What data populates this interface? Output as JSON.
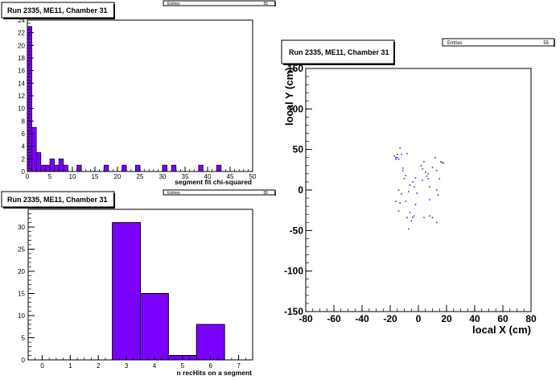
{
  "chart_data": [
    {
      "type": "bar",
      "title": "Run 2335, ME11, Chamber 31",
      "stats_label": "Entries",
      "stats_value": "55",
      "xlabel": "segment fit chi-squared",
      "ylabel": "",
      "xlim": [
        0,
        50
      ],
      "ylim": [
        0,
        24
      ],
      "bin_width": 1,
      "bin_edges_start": [
        0,
        1,
        2,
        3,
        4,
        5,
        6,
        7,
        8,
        11,
        17,
        21,
        24,
        30,
        32,
        38,
        42
      ],
      "values": [
        23,
        7,
        3,
        1,
        1,
        2,
        1,
        2,
        1,
        1,
        1,
        1,
        1,
        1,
        1,
        1,
        1
      ],
      "x_ticks": [
        "0",
        "5",
        "10",
        "15",
        "20",
        "25",
        "30",
        "35",
        "40",
        "45",
        "50"
      ],
      "y_ticks": [
        "0",
        "2",
        "4",
        "6",
        "8",
        "10",
        "12",
        "14",
        "16",
        "18",
        "20",
        "22",
        "24"
      ],
      "colors": {
        "fill": "#7b00ff",
        "frame": "#000000"
      }
    },
    {
      "type": "bar",
      "title": "Run 2335, ME11, Chamber 31",
      "stats_label": "Entries",
      "stats_value": "55",
      "xlabel": "n recHits on a segment",
      "ylabel": "",
      "xlim": [
        -0.5,
        7.5
      ],
      "ylim": [
        0,
        34
      ],
      "categories": [
        3,
        4,
        5,
        6
      ],
      "values": [
        31,
        15,
        1,
        8
      ],
      "x_ticks": [
        "0",
        "1",
        "2",
        "3",
        "4",
        "5",
        "6",
        "7"
      ],
      "y_ticks": [
        "0",
        "5",
        "10",
        "15",
        "20",
        "25",
        "30"
      ],
      "colors": {
        "fill": "#7b00ff",
        "frame": "#000000"
      }
    },
    {
      "type": "scatter",
      "title": "Run 2335, ME11, Chamber 31",
      "stats_label": "Entries",
      "stats_value": "55",
      "xlabel": "local X (cm)",
      "ylabel": "local Y (cm)",
      "xlim": [
        -80,
        80
      ],
      "ylim": [
        -150,
        150
      ],
      "x_ticks": [
        "-80",
        "-60",
        "-40",
        "-20",
        "0",
        "20",
        "40",
        "60",
        "80"
      ],
      "y_ticks": [
        "-150",
        "-100",
        "-50",
        "0",
        "50",
        "100",
        "150"
      ],
      "points": [
        [
          -17,
          42
        ],
        [
          -16,
          40
        ],
        [
          -16,
          38
        ],
        [
          -15,
          44
        ],
        [
          -15,
          40
        ],
        [
          -14,
          38
        ],
        [
          -13,
          52
        ],
        [
          -12,
          44
        ],
        [
          -11,
          27
        ],
        [
          -11,
          24
        ],
        [
          -10,
          14
        ],
        [
          -8,
          45
        ],
        [
          -7,
          -2
        ],
        [
          -14,
          0
        ],
        [
          -12,
          -5
        ],
        [
          -16,
          -14
        ],
        [
          -13,
          -16
        ],
        [
          -14,
          -26
        ],
        [
          -9,
          -14
        ],
        [
          -6,
          -28
        ],
        [
          -3,
          -32
        ],
        [
          -4,
          -34
        ],
        [
          -5,
          -38
        ],
        [
          -7,
          -48
        ],
        [
          -4,
          10
        ],
        [
          -3,
          4
        ],
        [
          -9,
          18
        ],
        [
          -6,
          6
        ],
        [
          -2,
          15
        ],
        [
          -1,
          -4
        ],
        [
          -2,
          -18
        ],
        [
          2,
          30
        ],
        [
          3,
          26
        ],
        [
          3,
          12
        ],
        [
          4,
          35
        ],
        [
          5,
          22
        ],
        [
          6,
          17
        ],
        [
          7,
          20
        ],
        [
          7,
          14
        ],
        [
          8,
          4
        ],
        [
          8,
          -12
        ],
        [
          10,
          28
        ],
        [
          12,
          40
        ],
        [
          13,
          24
        ],
        [
          13,
          0
        ],
        [
          14,
          -6
        ],
        [
          16,
          35
        ],
        [
          17,
          34
        ],
        [
          18,
          33
        ],
        [
          8,
          -32
        ],
        [
          10,
          -34
        ],
        [
          13,
          -40
        ],
        [
          4,
          -34
        ],
        [
          15,
          14
        ],
        [
          -8,
          -34
        ]
      ],
      "colors": {
        "fill": "#3333cc",
        "frame": "#000000"
      }
    }
  ]
}
